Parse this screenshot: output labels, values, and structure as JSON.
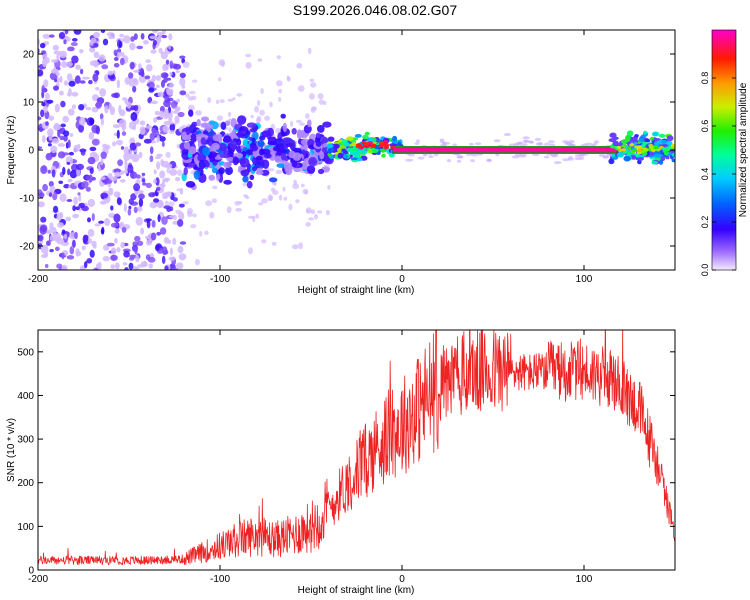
{
  "figure_title": "S199.2026.046.08.02.G07",
  "colors": {
    "snr_line": "#ee2222",
    "axis": "#000000",
    "band": "#e3245a",
    "band_edge": "#113311"
  },
  "chart_data": [
    {
      "type": "heatmap",
      "title": "S199.2026.046.08.02.G07",
      "xlabel": "Height of straight line (km)",
      "ylabel": "Frequency (Hz)",
      "xlim": [
        -200,
        150
      ],
      "ylim": [
        -25,
        25
      ],
      "xticks": [
        -200,
        -100,
        0,
        100
      ],
      "yticks": [
        -20,
        -10,
        0,
        10,
        20
      ],
      "colorbar": {
        "label": "Normalized spectral amplitude",
        "range": [
          0,
          1
        ],
        "ticks": [
          0.0,
          0.2,
          0.4,
          0.6,
          0.8
        ],
        "tick_labels": [
          "0.0",
          "0.2",
          "0.4",
          "0.6",
          "0.8"
        ],
        "colormap": "rainbow (violet to red to magenta)"
      },
      "regions": [
        {
          "name": "noise",
          "x": [
            -200,
            -120
          ],
          "freq_spread": 25,
          "amplitude": 0.15
        },
        {
          "name": "scattered",
          "x": [
            -120,
            -40
          ],
          "freq_spread": 8,
          "amplitude": 0.3
        },
        {
          "name": "transition",
          "x": [
            -40,
            0
          ],
          "freq_center": 1,
          "amplitude": 0.6
        },
        {
          "name": "tone",
          "x": [
            0,
            115
          ],
          "freq_center": 0,
          "amplitude": 0.97
        },
        {
          "name": "tail",
          "x": [
            115,
            150
          ],
          "freq_center": 0.5,
          "amplitude": 0.5
        }
      ]
    },
    {
      "type": "line",
      "xlabel": "Height of straight line (km)",
      "ylabel": "SNR (10 * v/v)",
      "xlim": [
        -200,
        150
      ],
      "ylim": [
        0,
        550
      ],
      "xticks": [
        -200,
        -100,
        0,
        100
      ],
      "yticks": [
        0,
        100,
        200,
        300,
        400,
        500
      ],
      "series": [
        {
          "name": "SNR",
          "x": [
            -200,
            -180,
            -160,
            -140,
            -120,
            -110,
            -100,
            -90,
            -80,
            -70,
            -60,
            -50,
            -40,
            -30,
            -20,
            -10,
            0,
            10,
            20,
            30,
            40,
            50,
            60,
            70,
            80,
            90,
            100,
            110,
            120,
            130,
            140,
            150
          ],
          "values": [
            22,
            22,
            22,
            22,
            25,
            40,
            55,
            70,
            80,
            70,
            80,
            100,
            140,
            200,
            250,
            300,
            330,
            375,
            420,
            445,
            455,
            458,
            455,
            452,
            455,
            455,
            455,
            445,
            420,
            370,
            250,
            80
          ]
        }
      ]
    }
  ]
}
